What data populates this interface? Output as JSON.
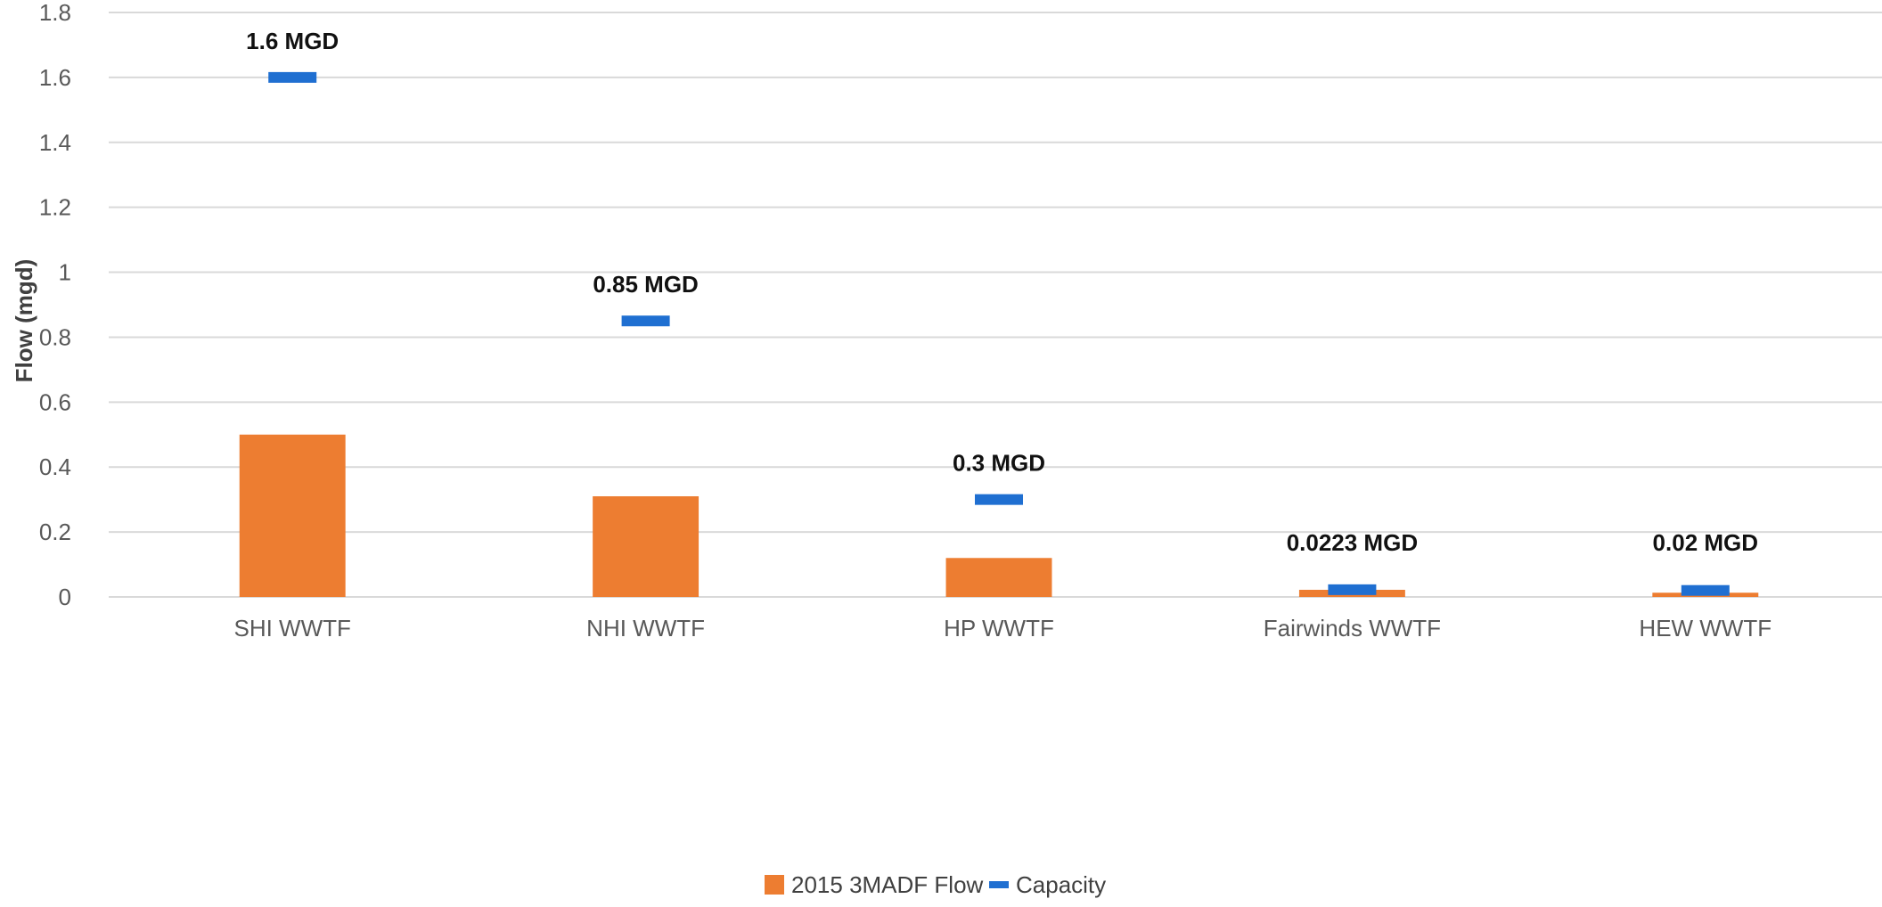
{
  "chart_data": {
    "type": "bar",
    "categories": [
      "SHI WWTF",
      "NHI WWTF",
      "HP WWTF",
      "Fairwinds WWTF",
      "HEW WWTF"
    ],
    "series": [
      {
        "name": "2015 3MADF Flow",
        "type": "bar",
        "color": "#ed7d31",
        "values": [
          0.5,
          0.31,
          0.12,
          0.022,
          0.013
        ]
      },
      {
        "name": "Capacity",
        "type": "marker",
        "color": "#1f6fd1",
        "values": [
          1.6,
          0.85,
          0.3,
          0.0223,
          0.02
        ],
        "labels": [
          "1.6 MGD",
          "0.85 MGD",
          "0.3 MGD",
          "0.0223 MGD",
          "0.02 MGD"
        ]
      }
    ],
    "xlabel": "",
    "ylabel": "Flow (mgd)",
    "ylim": [
      0,
      1.8
    ],
    "yticks": [
      0,
      0.2,
      0.4,
      0.6,
      0.8,
      1,
      1.2,
      1.4,
      1.6,
      1.8
    ],
    "ytick_labels": [
      "0",
      "0.2",
      "0.4",
      "0.6",
      "0.8",
      "1",
      "1.2",
      "1.4",
      "1.6",
      "1.8"
    ],
    "grid": true,
    "legend": {
      "placement": "bottom-center",
      "entries": [
        "2015 3MADF Flow",
        "Capacity"
      ]
    }
  }
}
